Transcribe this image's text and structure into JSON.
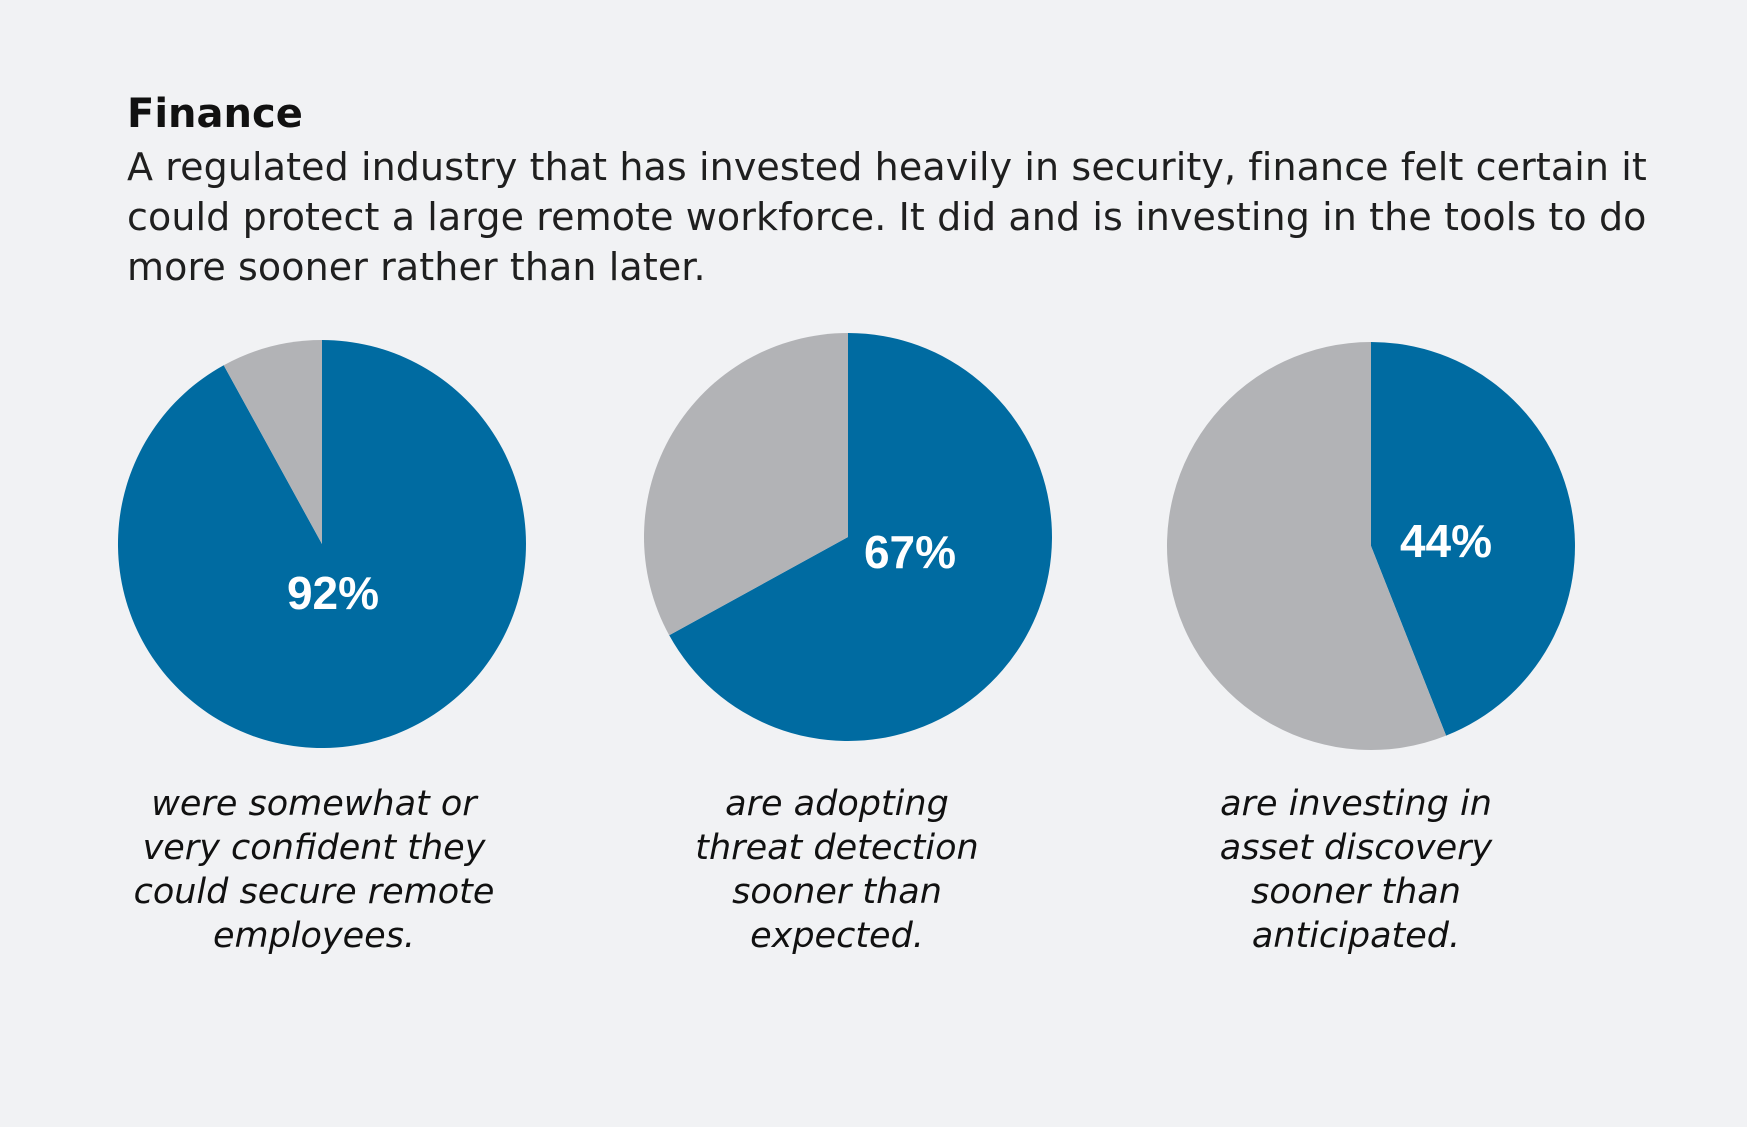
{
  "header": {
    "title": "Finance",
    "subtitle": "A regulated industry that has invested heavily in security, finance felt certain it could protect a large remote workforce. It did and is investing in the tools to do more sooner rather than later."
  },
  "colors": {
    "primary": "#006ba1",
    "remainder": "#b2b3b6",
    "background": "#f1f2f4"
  },
  "chart_data": [
    {
      "type": "pie",
      "values": [
        92,
        8
      ],
      "label": "92%",
      "caption": "were somewhat or very confident they could secure remote employees."
    },
    {
      "type": "pie",
      "values": [
        67,
        33
      ],
      "label": "67%",
      "caption": "are adopting threat detection sooner than expected."
    },
    {
      "type": "pie",
      "values": [
        44,
        56
      ],
      "label": "44%",
      "caption": "are investing in asset discovery sooner than anticipated."
    }
  ]
}
